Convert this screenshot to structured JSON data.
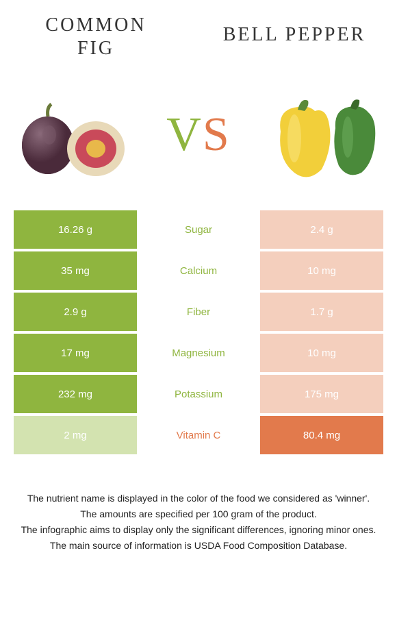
{
  "colors": {
    "left": "#8fb53f",
    "right": "#e27a4c",
    "left_dim": "#d3e3b0",
    "right_dim": "#f4cfbd",
    "text": "#333333"
  },
  "header": {
    "left_line1": "COMMON",
    "left_line2": "FIG",
    "right": "BELL PEPPER"
  },
  "vs": {
    "v": "V",
    "s": "S"
  },
  "rows": [
    {
      "label": "Sugar",
      "left": "16.26 g",
      "right": "2.4 g",
      "winner": "left"
    },
    {
      "label": "Calcium",
      "left": "35 mg",
      "right": "10 mg",
      "winner": "left"
    },
    {
      "label": "Fiber",
      "left": "2.9 g",
      "right": "1.7 g",
      "winner": "left"
    },
    {
      "label": "Magnesium",
      "left": "17 mg",
      "right": "10 mg",
      "winner": "left"
    },
    {
      "label": "Potassium",
      "left": "232 mg",
      "right": "175 mg",
      "winner": "left"
    },
    {
      "label": "Vitamin C",
      "left": "2 mg",
      "right": "80.4 mg",
      "winner": "right"
    }
  ],
  "footnotes": [
    "The nutrient name is displayed in the color of the food we considered as 'winner'.",
    "The amounts are specified per 100 gram of the product.",
    "The infographic aims to display only the significant differences, ignoring minor ones.",
    "The main source of information is USDA Food Composition Database."
  ]
}
